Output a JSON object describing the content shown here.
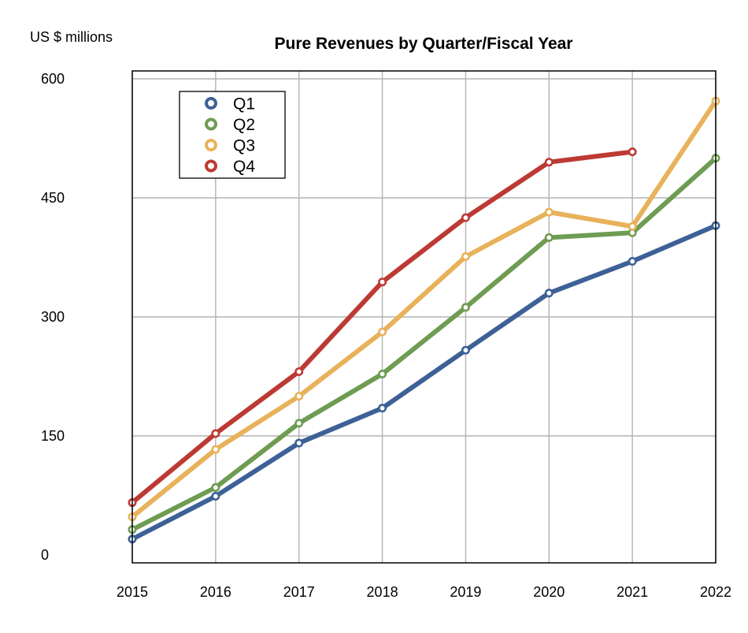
{
  "chart_data": {
    "type": "line",
    "title": "Pure Revenues by Quarter/Fiscal Year",
    "ylabel": "US $ millions",
    "xlabel": "",
    "categories": [
      "2015",
      "2016",
      "2017",
      "2018",
      "2019",
      "2020",
      "2021",
      "2022"
    ],
    "yticks": [
      "0",
      "150",
      "300",
      "450",
      "600"
    ],
    "ylim": [
      0,
      600
    ],
    "grid": true,
    "legend_position": "top-left",
    "series": [
      {
        "name": "Q1",
        "color": "#3d6196",
        "values": [
          20,
          74,
          141,
          185,
          258,
          330,
          370,
          415
        ]
      },
      {
        "name": "Q2",
        "color": "#6e9c52",
        "values": [
          32,
          85,
          166,
          228,
          312,
          400,
          406,
          500
        ]
      },
      {
        "name": "Q3",
        "color": "#e8b25a",
        "values": [
          48,
          133,
          200,
          281,
          376,
          432,
          414,
          572
        ]
      },
      {
        "name": "Q4",
        "color": "#bd3a34",
        "values": [
          66,
          153,
          231,
          344,
          425,
          495,
          508,
          null
        ]
      }
    ]
  }
}
